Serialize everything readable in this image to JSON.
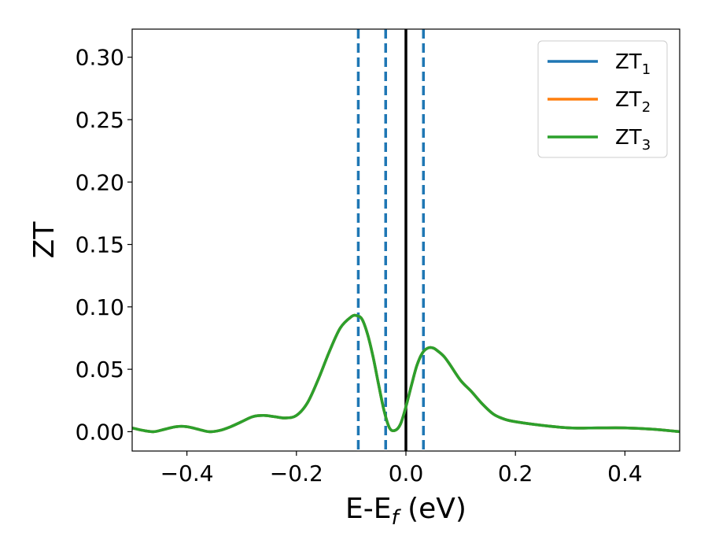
{
  "chart_data": {
    "type": "line",
    "xlabel": {
      "base": "E-E",
      "sub": "f",
      "unit": " (eV)"
    },
    "ylabel": "ZT",
    "xlim": [
      -0.5,
      0.5
    ],
    "ylim": [
      -0.0155,
      0.3225
    ],
    "grid": false,
    "legend_position": "top-right",
    "x_ticks": [
      -0.4,
      -0.2,
      0.0,
      0.2,
      0.4
    ],
    "x_tick_labels": [
      "−0.4",
      "−0.2",
      "0.0",
      "0.2",
      "0.4"
    ],
    "y_ticks": [
      0.0,
      0.05,
      0.1,
      0.15,
      0.2,
      0.25,
      0.3
    ],
    "y_tick_labels": [
      "0.00",
      "0.05",
      "0.10",
      "0.15",
      "0.20",
      "0.25",
      "0.30"
    ],
    "vertical_lines": [
      {
        "x": -0.087,
        "style": "dashed",
        "color": "#1f77b4"
      },
      {
        "x": -0.037,
        "style": "dashed",
        "color": "#1f77b4"
      },
      {
        "x": 0.0,
        "style": "solid",
        "color": "#000000"
      },
      {
        "x": 0.032,
        "style": "dashed",
        "color": "#1f77b4"
      }
    ],
    "x": [
      -0.5,
      -0.48,
      -0.46,
      -0.44,
      -0.42,
      -0.4,
      -0.38,
      -0.36,
      -0.34,
      -0.32,
      -0.3,
      -0.28,
      -0.26,
      -0.24,
      -0.22,
      -0.2,
      -0.18,
      -0.16,
      -0.14,
      -0.12,
      -0.1,
      -0.09,
      -0.08,
      -0.07,
      -0.06,
      -0.05,
      -0.04,
      -0.03,
      -0.02,
      -0.01,
      0.0,
      0.01,
      0.02,
      0.03,
      0.04,
      0.05,
      0.06,
      0.07,
      0.08,
      0.1,
      0.12,
      0.14,
      0.16,
      0.18,
      0.2,
      0.25,
      0.3,
      0.35,
      0.4,
      0.45,
      0.5
    ],
    "series": [
      {
        "name": "ZT",
        "sub": "1",
        "color": "#1f77b4",
        "values": [
          0.003,
          0.001,
          0.0,
          0.002,
          0.004,
          0.004,
          0.002,
          0.0,
          0.001,
          0.004,
          0.008,
          0.012,
          0.013,
          0.012,
          0.011,
          0.013,
          0.023,
          0.042,
          0.064,
          0.083,
          0.092,
          0.093,
          0.09,
          0.078,
          0.06,
          0.038,
          0.017,
          0.003,
          0.001,
          0.006,
          0.02,
          0.037,
          0.053,
          0.063,
          0.067,
          0.067,
          0.064,
          0.06,
          0.054,
          0.041,
          0.032,
          0.022,
          0.014,
          0.01,
          0.008,
          0.005,
          0.003,
          0.003,
          0.003,
          0.002,
          0.0
        ]
      },
      {
        "name": "ZT",
        "sub": "2",
        "color": "#ff7f0e",
        "values": [
          0.003,
          0.001,
          0.0,
          0.002,
          0.004,
          0.004,
          0.002,
          0.0,
          0.001,
          0.004,
          0.008,
          0.012,
          0.013,
          0.012,
          0.011,
          0.013,
          0.023,
          0.042,
          0.064,
          0.083,
          0.092,
          0.093,
          0.09,
          0.078,
          0.06,
          0.038,
          0.017,
          0.003,
          0.001,
          0.006,
          0.02,
          0.037,
          0.053,
          0.063,
          0.067,
          0.067,
          0.064,
          0.06,
          0.054,
          0.041,
          0.032,
          0.022,
          0.014,
          0.01,
          0.008,
          0.005,
          0.003,
          0.003,
          0.003,
          0.002,
          0.0
        ]
      },
      {
        "name": "ZT",
        "sub": "3",
        "color": "#2ca02c",
        "values": [
          0.003,
          0.001,
          0.0,
          0.002,
          0.004,
          0.004,
          0.002,
          0.0,
          0.001,
          0.004,
          0.008,
          0.012,
          0.013,
          0.012,
          0.011,
          0.013,
          0.023,
          0.042,
          0.064,
          0.083,
          0.092,
          0.093,
          0.09,
          0.078,
          0.06,
          0.038,
          0.017,
          0.003,
          0.001,
          0.006,
          0.02,
          0.037,
          0.053,
          0.063,
          0.067,
          0.067,
          0.064,
          0.06,
          0.054,
          0.041,
          0.032,
          0.022,
          0.014,
          0.01,
          0.008,
          0.005,
          0.003,
          0.003,
          0.003,
          0.002,
          0.0
        ]
      }
    ]
  }
}
